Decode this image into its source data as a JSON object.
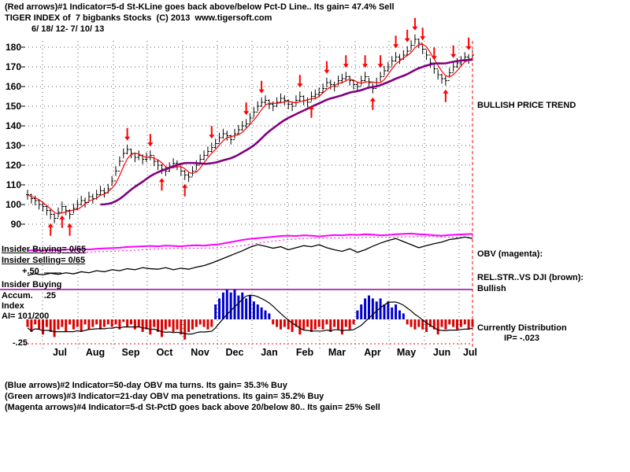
{
  "header": {
    "indicator1": "(Red arrows)#1 Indicator=5-d St-KLine goes back above/below Pct-D Line.. Its gain= 47.4% Sell",
    "title": "TIGER INDEX of  7 bigbanks Stocks  (C) 2013  www.tigersoft.com",
    "date_range": "6/ 18/ 12- 7/ 10/ 13"
  },
  "footer": {
    "indicator2": "(Blue arrows)#2 Indicator=50-day OBV ma turns. Its gain= 35.3% Buy",
    "indicator3": "(Green arrows)#3 Indicator=21-day OBV ma penetrations. Its gain= 35.2% Buy",
    "indicator4": "(Magenta arrows)#4 Indicator=5-d St-PctD goes back above 20/below 80.. Its gain= 25% Sell"
  },
  "right_labels": {
    "price_trend": "BULLISH PRICE TREND",
    "obv": "OBV (magenta):",
    "relstr": "REL.STR..VS DJI (brown):",
    "relstr_status": "Bullish",
    "accum_status": "Currently Distribution",
    "ip": "IP= -.023"
  },
  "left_labels": {
    "insider_buying": "Insider Buying= 0/65",
    "insider_selling": "Insider Selling= 0/65",
    "scale_top": "+.50",
    "accum_title1": "Insider Buying",
    "accum_title2": "Accum.",
    "accum_scale_mid": ".25",
    "accum_title3": "Index",
    "ai": "AI= 101/200",
    "scale_bottom": "-.25"
  },
  "chart_data": {
    "type": "candlestick",
    "title": "TIGER INDEX of 7 bigbanks Stocks",
    "date_range": "6/18/12 - 7/10/13",
    "x_labels": [
      "Jul",
      "Aug",
      "Sep",
      "Oct",
      "Nov",
      "Dec",
      "Jan",
      "Feb",
      "Mar",
      "Apr",
      "May",
      "Jun",
      "Jul"
    ],
    "price_axis": {
      "yticks": [
        90,
        100,
        110,
        120,
        130,
        140,
        150,
        160,
        170,
        180
      ],
      "ylim": [
        85,
        190
      ]
    },
    "close": [
      105,
      103,
      102,
      100,
      99,
      97,
      95,
      93,
      96,
      99,
      97,
      95,
      98,
      100,
      102,
      101,
      104,
      103,
      105,
      107,
      106,
      108,
      112,
      117,
      122,
      126,
      128,
      126,
      124,
      125,
      123,
      124,
      125,
      122,
      120,
      118,
      117,
      119,
      121,
      120,
      117,
      115,
      114,
      117,
      120,
      123,
      125,
      127,
      129,
      131,
      134,
      136,
      135,
      133,
      136,
      138,
      140,
      141,
      144,
      147,
      150,
      152,
      153,
      151,
      150,
      152,
      154,
      153,
      151,
      150,
      153,
      155,
      153,
      152,
      155,
      156,
      157,
      159,
      162,
      161,
      160,
      163,
      164,
      165,
      163,
      161,
      160,
      163,
      165,
      162,
      159,
      162,
      165,
      168,
      170,
      173,
      175,
      174,
      176,
      178,
      181,
      184,
      182,
      179,
      176,
      172,
      169,
      166,
      164,
      163,
      167,
      170,
      172,
      173,
      175,
      174,
      176
    ],
    "signals": {
      "sell_indices": [
        26,
        32,
        48,
        57,
        61,
        71,
        78,
        83,
        88,
        92,
        96,
        99,
        101,
        103,
        106,
        111,
        115
      ],
      "buy_indices": [
        6,
        9,
        11,
        35,
        41,
        74,
        90,
        109
      ]
    },
    "obv": [
      30,
      31,
      30,
      32,
      31,
      33,
      32,
      34,
      33,
      35,
      36,
      37,
      38,
      40,
      41,
      42,
      43,
      42,
      44,
      43,
      42,
      44,
      45,
      44,
      46,
      48,
      52,
      56,
      60,
      63,
      65,
      67,
      69,
      71,
      72,
      71,
      73,
      72,
      70,
      72,
      74,
      73,
      75,
      74,
      76,
      75,
      73,
      74,
      76,
      77,
      78,
      76,
      75,
      73,
      72,
      74,
      75,
      76,
      77
    ],
    "rel_strength": [
      0,
      3,
      1,
      4,
      2,
      5,
      3,
      7,
      5,
      9,
      7,
      11,
      9,
      13,
      11,
      15,
      13,
      12,
      15,
      11,
      14,
      12,
      16,
      19,
      24,
      30,
      36,
      42,
      48,
      55,
      60,
      57,
      53,
      56,
      50,
      54,
      58,
      56,
      60,
      54,
      50,
      47,
      52,
      45,
      50,
      57,
      63,
      68,
      72,
      66,
      60,
      54,
      58,
      62,
      65,
      70,
      72,
      75,
      72
    ],
    "accum_index": [
      -0.3,
      -0.5,
      -0.2,
      -0.4,
      -0.6,
      -0.3,
      -0.5,
      -0.7,
      -0.4,
      -0.3,
      -0.5,
      -0.2,
      -0.4,
      -0.3,
      -0.5,
      -0.2,
      -0.4,
      -0.3,
      -0.2,
      -0.4,
      -0.3,
      -0.2,
      -0.3,
      -0.2,
      -0.4,
      -0.1,
      -0.3,
      -0.2,
      -0.4,
      -0.3,
      -0.5,
      -0.4,
      -0.6,
      -0.3,
      -0.5,
      -0.7,
      -0.4,
      -0.3,
      -0.5,
      -0.4,
      -0.6,
      -0.8,
      -0.5,
      -0.4,
      -0.3,
      -0.2,
      -0.3,
      -0.4,
      -0.3,
      0.5,
      0.7,
      0.9,
      1.0,
      0.9,
      1.0,
      0.8,
      0.9,
      0.7,
      0.8,
      0.6,
      0.5,
      0.4,
      0.3,
      0.2,
      -0.2,
      -0.3,
      -0.4,
      -0.3,
      -0.4,
      -0.5,
      -0.3,
      -0.6,
      -0.4,
      -0.3,
      -0.5,
      -0.4,
      -0.3,
      -0.4,
      -0.2,
      -0.5,
      -0.3,
      -0.4,
      -0.6,
      -0.3,
      -0.4,
      -0.2,
      0.3,
      0.5,
      0.7,
      0.8,
      0.7,
      0.6,
      0.7,
      0.5,
      0.6,
      0.4,
      0.5,
      0.3,
      0.2,
      -0.2,
      -0.3,
      -0.4,
      -0.3,
      -0.4,
      -0.5,
      -0.3,
      -0.4,
      -0.6,
      -0.3,
      -0.4,
      -0.2,
      -0.3,
      -0.4,
      -0.3,
      -0.2,
      -0.4,
      -0.3
    ],
    "colors": {
      "price": "#000000",
      "ma_fast": "#ff0000",
      "ma_slow": "#800080",
      "obv": "#ff00ff",
      "rel_strength": "#000000",
      "accum_up": "#0000cc",
      "accum_down": "#dd0000",
      "signal": "#ff0000",
      "scale_line": "#a000a0"
    }
  }
}
